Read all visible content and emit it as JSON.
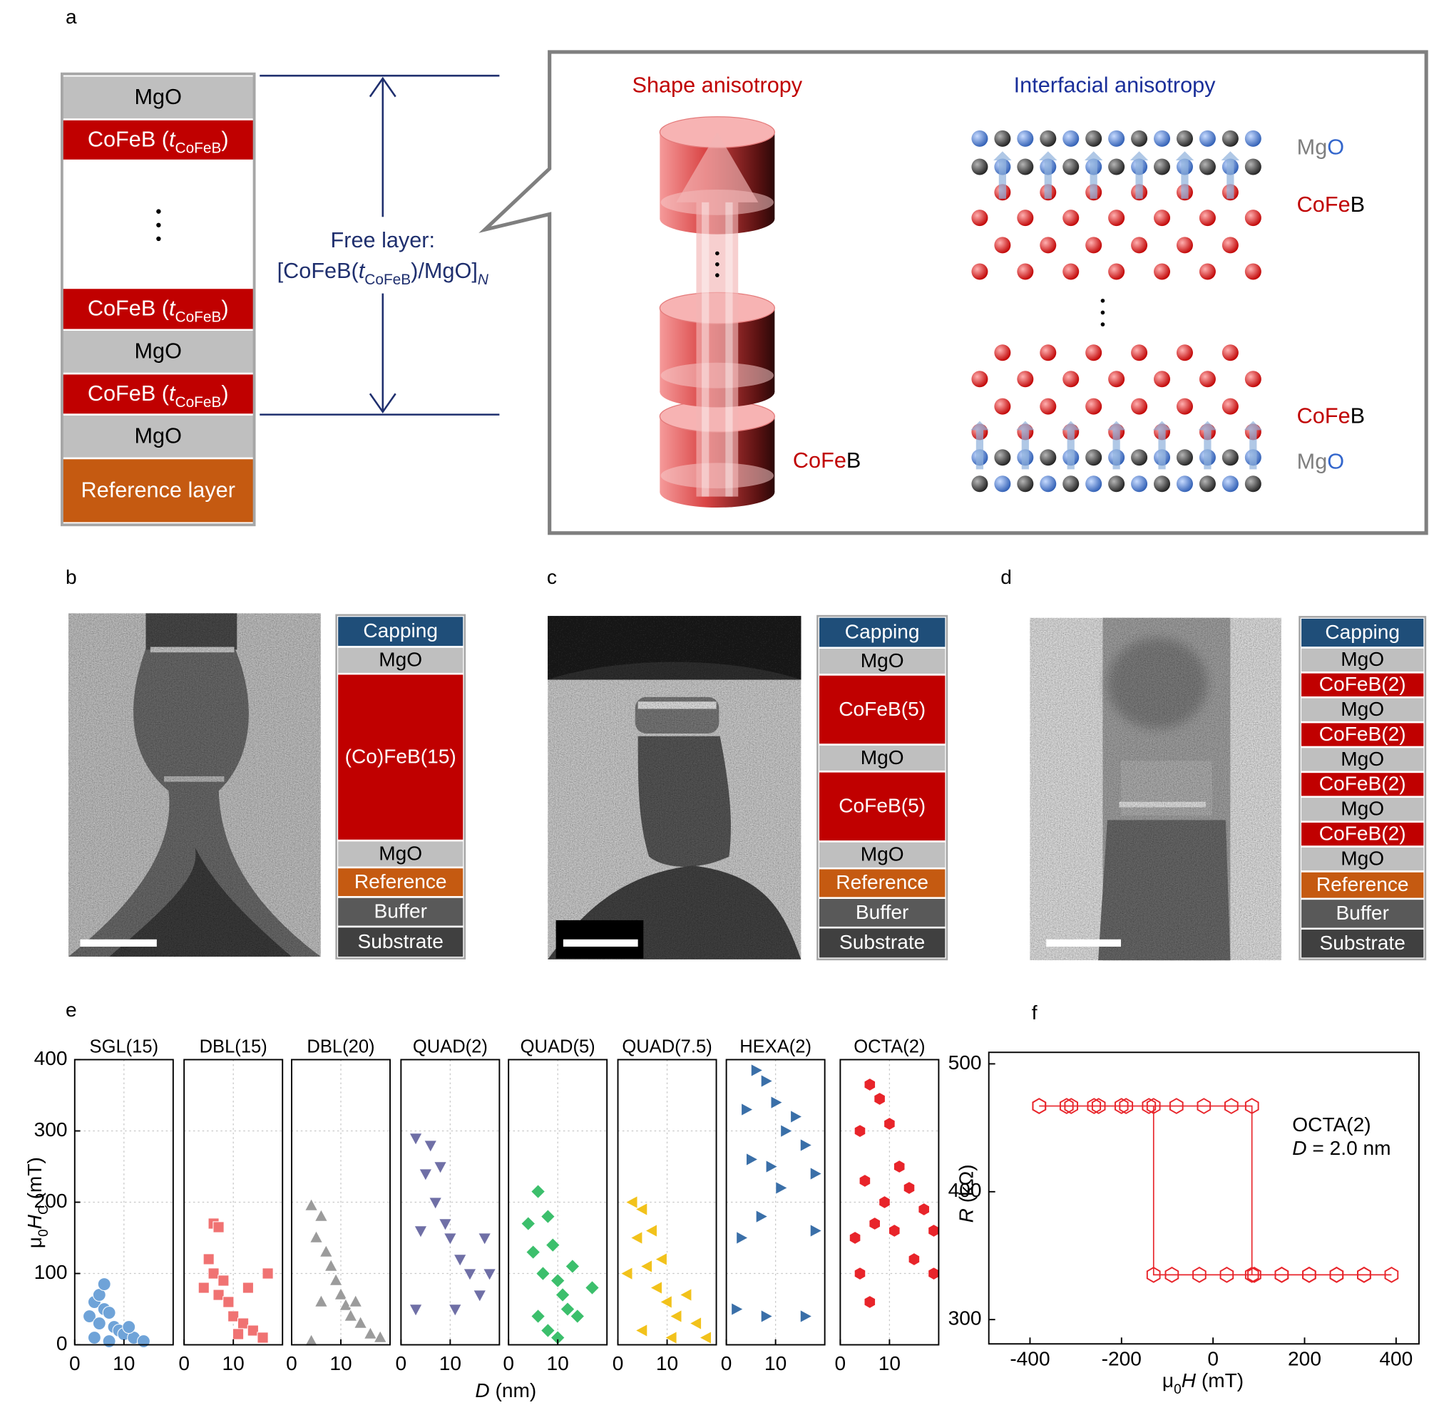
{
  "labels": [
    "a",
    "b",
    "c",
    "d",
    "e",
    "f"
  ],
  "a": {
    "stack_top": [
      {
        "text": "MgO",
        "color": "#bfbfbf"
      },
      {
        "text": "CoFeB (",
        "italic": "t",
        "sub": "CoFeB",
        "close": ")",
        "color": "#c00000"
      }
    ],
    "stack_bottom": [
      {
        "text": "CoFeB (",
        "italic": "t",
        "sub": "CoFeB",
        "close": ")",
        "color": "#c00000"
      },
      {
        "text": "MgO",
        "color": "#bfbfbf"
      },
      {
        "text": "CoFeB (",
        "italic": "t",
        "sub": "CoFeB",
        "close": ")",
        "color": "#c00000"
      },
      {
        "text": "MgO",
        "color": "#bfbfbf"
      },
      {
        "text": "Reference layer",
        "color": "#c55a11"
      }
    ],
    "free_layer_title": {
      "text": "Free layer:",
      "color": "#1f2f6e"
    },
    "free_layer_formula": {
      "text": "[CoFeB(",
      "italic": "t",
      "sub": "CoFeB",
      "close": ")/MgO]",
      "sub_i": "N",
      "color": "#1f2f6e"
    },
    "shape_title": {
      "text": "Shape anisotropy",
      "color": "#c00000"
    },
    "interfacial_title": {
      "text": "Interfacial anisotropy",
      "color": "#1a2f9a"
    },
    "shape_label": {
      "parts": [
        "CoFe",
        "B"
      ],
      "colors": [
        "#c00000",
        "#000000"
      ]
    },
    "lattice_labels": [
      {
        "parts": [
          "Mg",
          "O"
        ],
        "colors": [
          "#7f7f7f",
          "#3366cc"
        ]
      },
      {
        "parts": [
          "CoFe",
          "B"
        ],
        "colors": [
          "#c00000",
          "#000000"
        ]
      },
      {
        "parts": [
          "CoFe",
          "B"
        ],
        "colors": [
          "#c00000",
          "#000000"
        ]
      },
      {
        "parts": [
          "Mg",
          "O"
        ],
        "colors": [
          "#7f7f7f",
          "#3366cc"
        ]
      }
    ]
  },
  "b": {
    "stack": [
      {
        "text": "Capping",
        "color": "#1f4e79"
      },
      {
        "text": "MgO",
        "color": "#bfbfbf"
      },
      {
        "text": "(Co)FeB(15)",
        "color": "#c00000"
      },
      {
        "text": "MgO",
        "color": "#bfbfbf"
      },
      {
        "text": "Reference",
        "color": "#c55a11"
      },
      {
        "text": "Buffer",
        "color": "#595959"
      },
      {
        "text": "Substrate",
        "color": "#404040"
      }
    ]
  },
  "c": {
    "stack": [
      {
        "text": "Capping",
        "color": "#1f4e79"
      },
      {
        "text": "MgO",
        "color": "#bfbfbf"
      },
      {
        "text": "CoFeB(5)",
        "color": "#c00000"
      },
      {
        "text": "MgO",
        "color": "#bfbfbf"
      },
      {
        "text": "CoFeB(5)",
        "color": "#c00000"
      },
      {
        "text": "MgO",
        "color": "#bfbfbf"
      },
      {
        "text": "Reference",
        "color": "#c55a11"
      },
      {
        "text": "Buffer",
        "color": "#595959"
      },
      {
        "text": "Substrate",
        "color": "#404040"
      }
    ]
  },
  "d": {
    "stack": [
      {
        "text": "Capping",
        "color": "#1f4e79"
      },
      {
        "text": "MgO",
        "color": "#bfbfbf"
      },
      {
        "text": "CoFeB(2)",
        "color": "#c00000"
      },
      {
        "text": "MgO",
        "color": "#bfbfbf"
      },
      {
        "text": "CoFeB(2)",
        "color": "#c00000"
      },
      {
        "text": "MgO",
        "color": "#bfbfbf"
      },
      {
        "text": "CoFeB(2)",
        "color": "#c00000"
      },
      {
        "text": "MgO",
        "color": "#bfbfbf"
      },
      {
        "text": "CoFeB(2)",
        "color": "#c00000"
      },
      {
        "text": "MgO",
        "color": "#bfbfbf"
      },
      {
        "text": "Reference",
        "color": "#c55a11"
      },
      {
        "text": "Buffer",
        "color": "#595959"
      },
      {
        "text": "Substrate",
        "color": "#404040"
      }
    ]
  },
  "chart_data": [
    {
      "type": "scatter",
      "ylabel": {
        "text": "μ",
        "sub": "0",
        "italic": "H",
        "sub_2": "C",
        "close": " (mT)"
      },
      "xlabel": {
        "italic": "D",
        "text": " (nm)"
      },
      "ylim": [
        0,
        400
      ],
      "yticks": [
        0,
        100,
        200,
        300,
        400
      ],
      "xlim": [
        0,
        20
      ],
      "xticks": [
        0,
        10
      ],
      "grid": true,
      "panels": [
        {
          "title": "SGL(15)",
          "marker": "circle",
          "color": "#6fa3d8",
          "x": [
            3,
            4,
            5,
            6,
            5,
            6,
            7,
            8,
            9,
            10,
            12,
            14,
            4,
            7,
            11
          ],
          "values": [
            40,
            60,
            70,
            85,
            30,
            50,
            45,
            25,
            20,
            15,
            10,
            5,
            10,
            5,
            25
          ]
        },
        {
          "title": "DBL(15)",
          "marker": "square",
          "color": "#f07272",
          "x": [
            6,
            7,
            5,
            6,
            8,
            4,
            7,
            9,
            10,
            12,
            14,
            16,
            17,
            13,
            11
          ],
          "values": [
            170,
            165,
            120,
            100,
            90,
            80,
            70,
            60,
            40,
            30,
            20,
            10,
            100,
            80,
            15
          ]
        },
        {
          "title": "DBL(20)",
          "marker": "triangle-up",
          "color": "#9b9b9b",
          "x": [
            4,
            6,
            5,
            7,
            8,
            9,
            10,
            11,
            12,
            14,
            16,
            18,
            6,
            4,
            13
          ],
          "values": [
            195,
            180,
            150,
            130,
            110,
            90,
            70,
            55,
            40,
            30,
            15,
            10,
            60,
            5,
            60
          ]
        },
        {
          "title": "QUAD(2)",
          "marker": "triangle-down",
          "color": "#6f6fa6",
          "x": [
            3,
            6,
            5,
            8,
            7,
            9,
            4,
            10,
            12,
            14,
            17,
            18,
            3,
            11,
            16
          ],
          "values": [
            290,
            280,
            240,
            250,
            200,
            170,
            160,
            150,
            120,
            100,
            150,
            100,
            50,
            50,
            70
          ]
        },
        {
          "title": "QUAD(5)",
          "marker": "diamond",
          "color": "#3cbf6c",
          "x": [
            6,
            4,
            8,
            5,
            9,
            7,
            10,
            11,
            12,
            14,
            17,
            8,
            6,
            13,
            10
          ],
          "values": [
            215,
            170,
            180,
            130,
            140,
            100,
            90,
            70,
            50,
            40,
            80,
            20,
            40,
            110,
            10
          ]
        },
        {
          "title": "QUAD(7.5)",
          "marker": "triangle-left",
          "color": "#f2c21b",
          "x": [
            3,
            5,
            4,
            7,
            6,
            9,
            8,
            10,
            12,
            14,
            16,
            18,
            5,
            11,
            2
          ],
          "values": [
            200,
            190,
            150,
            160,
            110,
            120,
            80,
            60,
            40,
            70,
            30,
            10,
            20,
            10,
            100
          ]
        },
        {
          "title": "HEXA(2)",
          "marker": "triangle-right",
          "color": "#3a6fa8",
          "x": [
            6,
            8,
            4,
            10,
            12,
            14,
            5,
            9,
            11,
            16,
            18,
            3,
            7,
            2,
            8,
            16,
            18
          ],
          "values": [
            385,
            370,
            330,
            340,
            300,
            320,
            260,
            250,
            220,
            280,
            240,
            150,
            180,
            50,
            40,
            40,
            160
          ]
        },
        {
          "title": "OCTA(2)",
          "marker": "hexagon",
          "color": "#e8242a",
          "x": [
            6,
            8,
            4,
            10,
            12,
            14,
            5,
            9,
            3,
            7,
            11,
            17,
            4,
            6,
            15,
            19,
            19
          ],
          "values": [
            365,
            345,
            300,
            310,
            250,
            220,
            230,
            200,
            150,
            170,
            160,
            190,
            100,
            60,
            120,
            160,
            100
          ]
        }
      ]
    },
    {
      "type": "line",
      "xlabel": {
        "text": "μ",
        "sub": "0",
        "italic": "H",
        "close": " (mT)"
      },
      "ylabel": {
        "italic": "R",
        "text": " (kΩ)"
      },
      "annotation": "OCTA(2)",
      "annotation_2": {
        "italic": "D",
        "text": " = 2.0 nm"
      },
      "xlim": [
        -490,
        450
      ],
      "xticks": [
        -400,
        -200,
        0,
        200,
        400
      ],
      "ylim": [
        281,
        509
      ],
      "yticks": [
        300,
        400,
        500
      ],
      "x": [
        -380,
        -320,
        -260,
        -200,
        -140,
        -80,
        -20,
        40,
        85,
        85,
        150,
        210,
        270,
        330,
        390,
        330,
        270,
        210,
        150,
        90,
        30,
        -30,
        -90,
        -130,
        -130,
        -190,
        -250,
        -310,
        -380
      ],
      "series": [
        {
          "color": "#e8242a",
          "marker": "hexagon",
          "values": [
            467,
            467,
            467,
            467,
            467,
            467,
            467,
            467,
            467,
            335,
            335,
            335,
            335,
            335,
            335,
            335,
            335,
            335,
            335,
            335,
            335,
            335,
            335,
            335,
            467,
            467,
            467,
            467,
            467
          ]
        }
      ]
    }
  ]
}
